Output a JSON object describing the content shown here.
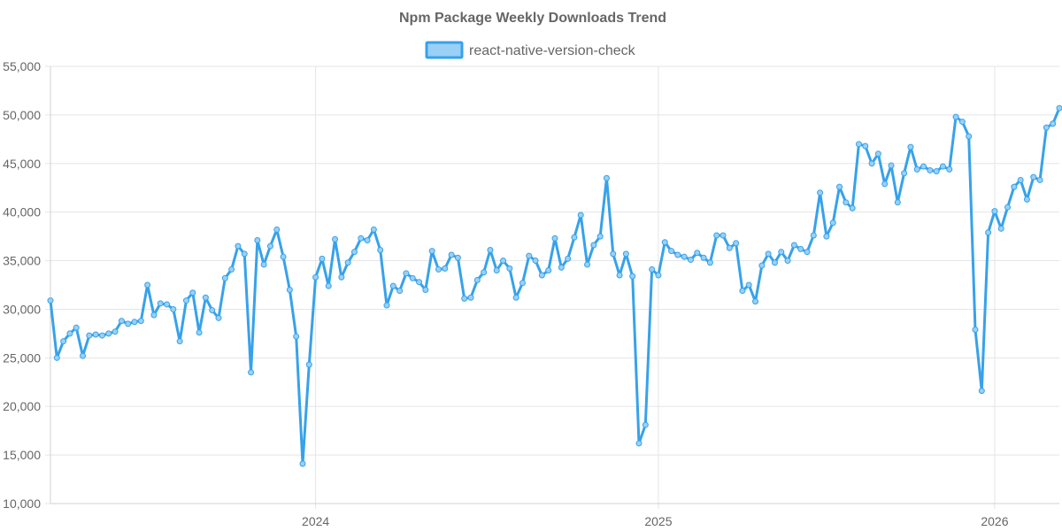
{
  "chart_data": {
    "type": "line",
    "title": "Npm Package Weekly Downloads Trend",
    "legend": {
      "position": "top",
      "entries": [
        "react-native-version-check"
      ]
    },
    "series_color": "#36a2eb",
    "series_fill": "#9ad0f5",
    "grid": true,
    "xlabel": "",
    "ylabel": "",
    "ylim": [
      10000,
      55000
    ],
    "ytick_values": [
      10000,
      15000,
      20000,
      25000,
      30000,
      35000,
      40000,
      45000,
      50000,
      55000
    ],
    "ytick_labels": [
      "10,000",
      "15,000",
      "20,000",
      "25,000",
      "30,000",
      "35,000",
      "40,000",
      "45,000",
      "50,000",
      "55,000"
    ],
    "xtick_labels": [
      "2024",
      "2025",
      "2026"
    ],
    "xtick_week_index": [
      41,
      94,
      146
    ],
    "series": [
      {
        "name": "react-native-version-check",
        "values": [
          30900,
          25000,
          26700,
          27500,
          28100,
          25200,
          27300,
          27400,
          27300,
          27500,
          27700,
          28800,
          28500,
          28700,
          28800,
          32500,
          29400,
          30600,
          30500,
          30000,
          26700,
          30900,
          31700,
          27600,
          31200,
          29900,
          29100,
          33200,
          34100,
          36500,
          35700,
          23500,
          37100,
          34600,
          36500,
          38200,
          35400,
          32000,
          27200,
          14100,
          24300,
          33300,
          35200,
          32400,
          37200,
          33300,
          34800,
          35900,
          37300,
          37100,
          38200,
          36100,
          30400,
          32400,
          31900,
          33700,
          33200,
          32800,
          32000,
          36000,
          34100,
          34200,
          35600,
          35300,
          31100,
          31200,
          33000,
          33800,
          36100,
          34000,
          35000,
          34200,
          31200,
          32700,
          35500,
          35000,
          33500,
          34000,
          37300,
          34300,
          35200,
          37400,
          39700,
          34600,
          36600,
          37500,
          43500,
          35700,
          33500,
          35700,
          33400,
          16200,
          18100,
          34100,
          33500,
          36900,
          36000,
          35600,
          35400,
          35100,
          35800,
          35300,
          34800,
          37600,
          37600,
          36300,
          36800,
          31900,
          32500,
          30800,
          34500,
          35700,
          34800,
          35900,
          35000,
          36600,
          36200,
          35900,
          37600,
          42000,
          37500,
          38900,
          42600,
          41000,
          40400,
          47000,
          46800,
          45000,
          46000,
          42900,
          44800,
          41000,
          44000,
          46700,
          44400,
          44700,
          44300,
          44200,
          44700,
          44400,
          49800,
          49300,
          47800,
          27900,
          21600,
          37900,
          40100,
          38300,
          40500,
          42600,
          43300,
          41300,
          43600,
          43300,
          48700,
          49100,
          50700
        ]
      }
    ]
  }
}
